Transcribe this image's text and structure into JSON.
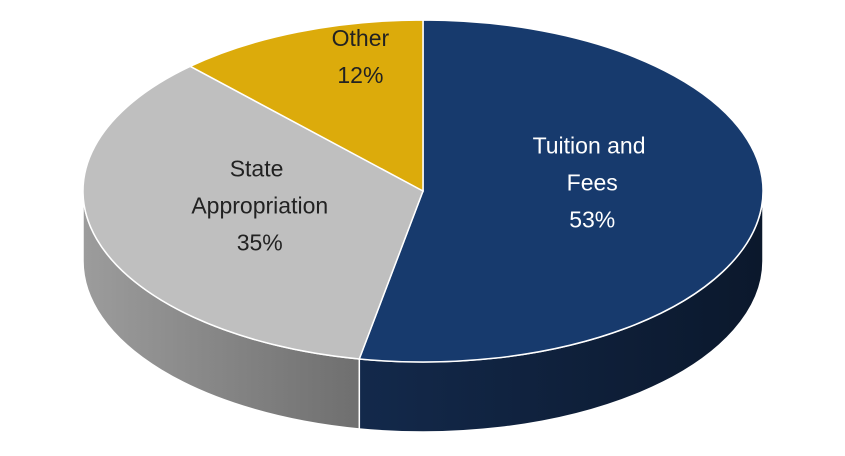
{
  "chart_data": {
    "type": "pie",
    "categories": [
      "Tuition and Fees",
      "State Appropriation",
      "Other"
    ],
    "values": [
      53,
      35,
      12
    ],
    "value_labels": [
      "53%",
      "35%",
      "12%"
    ],
    "colors": [
      "#173a6d",
      "#bfbfbf",
      "#dcab0b"
    ],
    "label_colors": [
      "#ffffff",
      "#222222",
      "#222222"
    ]
  }
}
